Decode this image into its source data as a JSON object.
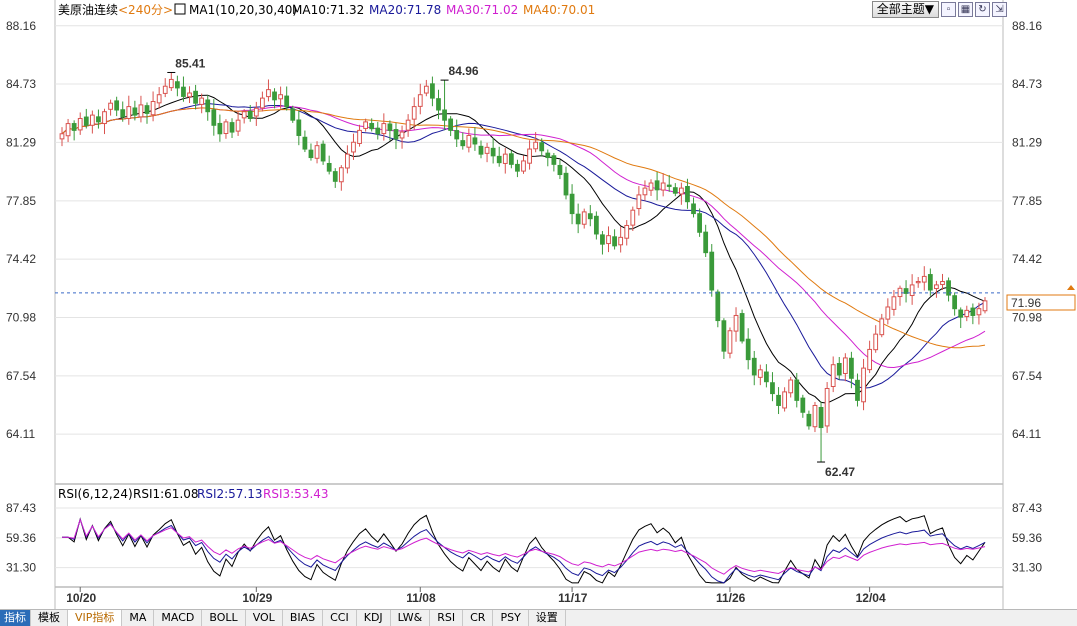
{
  "header": {
    "title": "美原油连续",
    "period": "<240分>",
    "ma_label": "MA1(10,20,30,40)",
    "ma10": "MA10:71.32",
    "ma20": "MA20:71.78",
    "ma30": "MA30:71.02",
    "ma40": "MA40:70.01",
    "theme_button": "全部主题▼"
  },
  "toolbar_icons": [
    "window-icon",
    "grid-icon",
    "refresh-icon",
    "expand-icon"
  ],
  "colors": {
    "up": "#d9534f",
    "down": "#3a9a3a",
    "ma10": "#000000",
    "ma20": "#1a1a9a",
    "ma30": "#d020d0",
    "ma40": "#e07a10",
    "rsi1": "#000000",
    "rsi2": "#1a1a9a",
    "rsi3": "#d020d0",
    "price_line": "#3a6ac8",
    "price_box": "#e07a10",
    "grid": "#e4e4e4"
  },
  "rsi_header": {
    "label": "RSI(6,12,24)",
    "rsi1": "RSI1:61.08",
    "rsi2": "RSI2:57.13",
    "rsi3": "RSI3:53.43"
  },
  "current_price": "71.96",
  "bottom_tabs": [
    "指标",
    "模板",
    "VIP指标",
    "MA",
    "MACD",
    "BOLL",
    "VOL",
    "BIAS",
    "CCI",
    "KDJ",
    "LW&",
    "RSI",
    "CR",
    "PSY",
    "设置"
  ],
  "chart_data": {
    "type": "candlestick",
    "symbol": "美原油连续",
    "period": "240分",
    "y_ticks": [
      88.16,
      84.73,
      81.29,
      77.85,
      74.42,
      70.98,
      67.54,
      64.11
    ],
    "ylim": [
      62.0,
      88.5
    ],
    "x_date_labels": [
      {
        "label": "10/20",
        "index": 3
      },
      {
        "label": "10/29",
        "index": 32
      },
      {
        "label": "11/08",
        "index": 59
      },
      {
        "label": "11/17",
        "index": 84
      },
      {
        "label": "11/26",
        "index": 110
      },
      {
        "label": "12/04",
        "index": 133
      }
    ],
    "annotations": [
      {
        "text": "85.41",
        "index": 18,
        "value": 85.41,
        "kind": "high"
      },
      {
        "text": "84.96",
        "index": 63,
        "value": 84.96,
        "kind": "high"
      },
      {
        "text": "62.47",
        "index": 125,
        "value": 62.47,
        "kind": "low"
      }
    ],
    "closes": [
      81.8,
      82.4,
      82.0,
      82.7,
      82.3,
      82.9,
      82.5,
      83.1,
      83.6,
      83.2,
      82.8,
      83.4,
      82.9,
      83.5,
      83.0,
      83.7,
      84.1,
      84.6,
      85.0,
      84.5,
      84.0,
      84.2,
      83.6,
      83.9,
      83.1,
      82.3,
      81.8,
      82.5,
      81.9,
      82.6,
      83.1,
      82.7,
      83.3,
      83.9,
      84.4,
      83.8,
      84.1,
      83.4,
      82.6,
      81.7,
      80.9,
      80.4,
      81.1,
      80.2,
      79.6,
      79.0,
      79.8,
      80.6,
      81.3,
      82.0,
      82.5,
      82.1,
      81.8,
      82.4,
      82.0,
      81.5,
      81.9,
      82.6,
      83.4,
      84.1,
      84.6,
      83.9,
      83.2,
      82.6,
      82.0,
      81.5,
      81.1,
      81.7,
      81.2,
      80.6,
      81.0,
      80.5,
      80.1,
      80.6,
      80.0,
      79.6,
      80.2,
      80.9,
      81.3,
      80.8,
      80.4,
      80.0,
      79.4,
      78.2,
      77.1,
      76.5,
      77.2,
      76.8,
      75.9,
      75.3,
      75.8,
      75.2,
      75.7,
      76.4,
      77.3,
      78.2,
      78.6,
      78.9,
      78.5,
      78.9,
      78.7,
      78.3,
      78.6,
      77.8,
      77.1,
      76.0,
      74.8,
      72.6,
      70.8,
      69.0,
      70.2,
      71.1,
      69.6,
      68.5,
      67.6,
      67.9,
      67.2,
      66.5,
      65.8,
      66.6,
      67.3,
      66.1,
      65.4,
      64.6,
      65.8,
      64.5,
      66.8,
      68.2,
      67.6,
      68.6,
      67.4,
      66.1,
      68.0,
      69.1,
      70.0,
      70.9,
      71.6,
      72.2,
      72.7,
      72.4,
      72.9,
      73.1,
      73.4,
      72.6,
      72.9,
      73.1,
      72.3,
      71.5,
      71.0,
      71.4,
      71.1,
      71.5,
      71.96
    ],
    "ma_series": [
      {
        "name": "MA10",
        "last": 71.32
      },
      {
        "name": "MA20",
        "last": 71.78
      },
      {
        "name": "MA30",
        "last": 71.02
      },
      {
        "name": "MA40",
        "last": 70.01
      }
    ],
    "rsi": {
      "label": "RSI(6,12,24)",
      "y_ticks": [
        87.43,
        59.36,
        31.3
      ],
      "ylim": [
        15,
        95
      ],
      "series": [
        {
          "name": "RSI1",
          "last": 61.08
        },
        {
          "name": "RSI2",
          "last": 57.13
        },
        {
          "name": "RSI3",
          "last": 53.43
        }
      ]
    }
  }
}
